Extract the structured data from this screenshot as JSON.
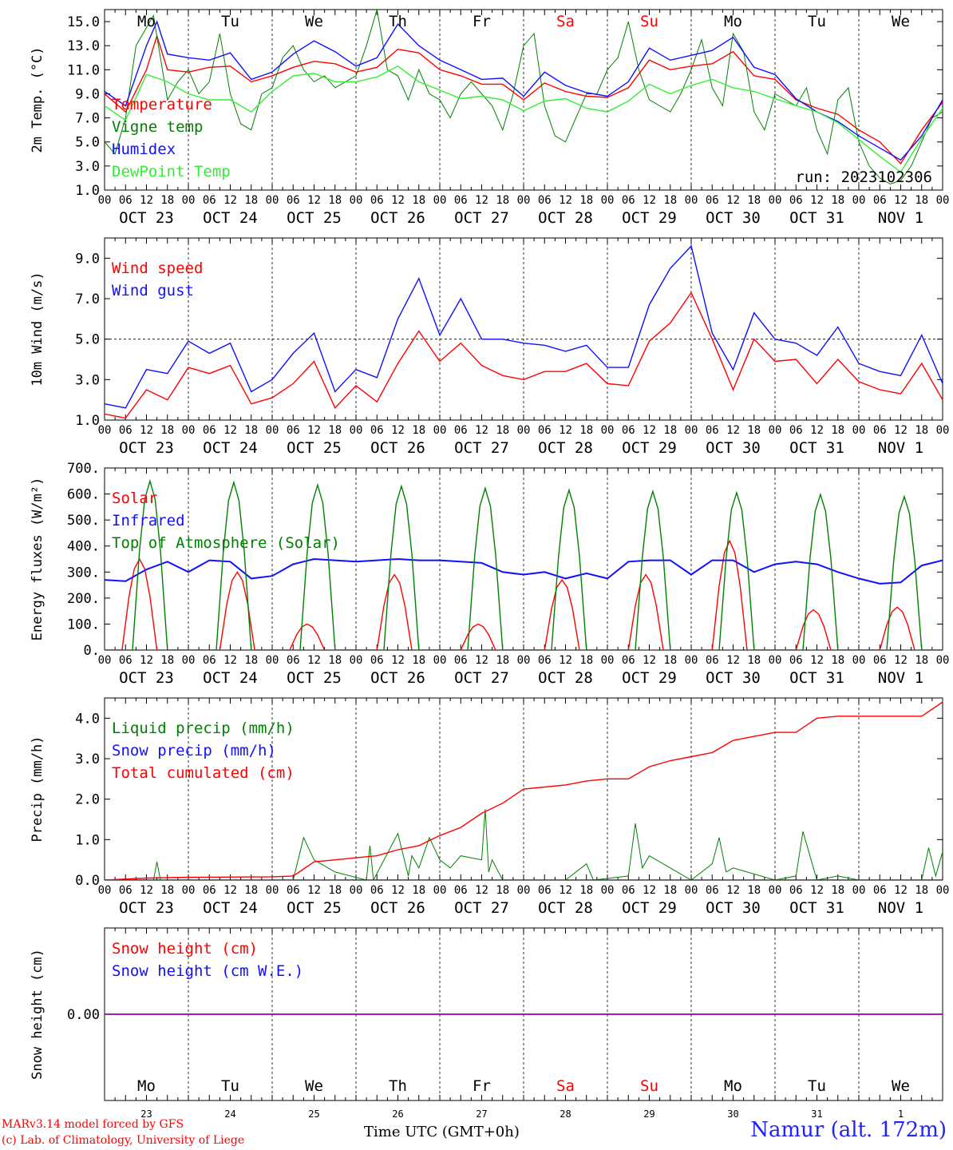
{
  "run_label": "run: 2023102306",
  "day_names": [
    "Mo",
    "Tu",
    "We",
    "Th",
    "Fr",
    "Sa",
    "Su",
    "Mo",
    "Tu",
    "We"
  ],
  "weekend_indices": [
    5,
    6
  ],
  "day_numbers": [
    "23",
    "24",
    "25",
    "26",
    "27",
    "28",
    "29",
    "30",
    "31",
    "1"
  ],
  "date_labels": [
    "OCT 23",
    "OCT 24",
    "OCT 25",
    "OCT 26",
    "OCT 27",
    "OCT 28",
    "OCT 29",
    "OCT 30",
    "OCT 31",
    "NOV  1"
  ],
  "hour_labels": [
    "00",
    "06",
    "12",
    "18"
  ],
  "colors": {
    "red": "#ff0000",
    "green": "#008000",
    "blue": "#1010ff",
    "lightgreen": "#33ee33",
    "purple": "#8000c0"
  },
  "footer": {
    "credit1": "MARv3.14 model forced by GFS",
    "credit2": "(c) Lab. of Climatology, University of Liege",
    "xlabel": "Time UTC (GMT+0h)",
    "station": "Namur (alt. 172m)"
  },
  "chart_data": [
    {
      "type": "line",
      "ylabel": "2m Temp. (°C)",
      "ylim": [
        1,
        16
      ],
      "yticks": [
        1,
        3,
        5,
        7,
        9,
        11,
        13,
        15
      ],
      "ytick_format": 1,
      "x_unit": "hours since 2023-10-23 00 UTC",
      "series": [
        {
          "name": "Temperature",
          "color": "red",
          "x": [
            0,
            6,
            12,
            15,
            18,
            24,
            30,
            36,
            42,
            48,
            54,
            60,
            66,
            72,
            78,
            84,
            90,
            96,
            102,
            108,
            114,
            120,
            126,
            132,
            138,
            144,
            150,
            156,
            162,
            168,
            174,
            180,
            186,
            192,
            198,
            204,
            210,
            216,
            222,
            228,
            234,
            240
          ],
          "values": [
            9,
            7.5,
            11,
            13.8,
            11,
            10.8,
            11.2,
            11.3,
            10,
            10.5,
            11.2,
            11.7,
            11.5,
            10.8,
            11.2,
            12.7,
            12.4,
            11,
            10.5,
            9.8,
            9.8,
            8.5,
            9.9,
            9.2,
            8.8,
            8.7,
            9.5,
            11.8,
            11,
            11.3,
            11.5,
            12.5,
            10.5,
            10.2,
            8.5,
            7.8,
            7.3,
            6,
            5,
            3.2,
            6,
            8.3
          ]
        },
        {
          "name": "Vigne temp",
          "color": "green",
          "x": [
            0,
            3,
            6,
            9,
            12,
            14,
            16,
            18,
            21,
            24,
            27,
            30,
            33,
            36,
            39,
            42,
            45,
            48,
            51,
            54,
            57,
            60,
            63,
            66,
            69,
            72,
            75,
            78,
            81,
            84,
            87,
            90,
            93,
            96,
            99,
            102,
            105,
            108,
            111,
            114,
            117,
            120,
            123,
            126,
            129,
            132,
            135,
            138,
            141,
            144,
            147,
            150,
            153,
            156,
            159,
            162,
            165,
            168,
            171,
            174,
            177,
            180,
            183,
            186,
            189,
            192,
            195,
            198,
            201,
            204,
            207,
            210,
            213,
            216,
            219,
            222,
            225,
            228,
            231,
            234,
            237,
            240
          ],
          "values": [
            5,
            4,
            7,
            13,
            14.5,
            15.5,
            12,
            8.5,
            10,
            11,
            9,
            10,
            14,
            9,
            6.5,
            6,
            9,
            9.5,
            12,
            13,
            11,
            10,
            10.5,
            9.5,
            10,
            10.5,
            13,
            16,
            11,
            10.5,
            8.5,
            11,
            9,
            8.5,
            7,
            9,
            10,
            9,
            8,
            6,
            9,
            13,
            14,
            8,
            5.5,
            5,
            7,
            9,
            9,
            11,
            12,
            15,
            11,
            8.5,
            8,
            7.5,
            9,
            11,
            13.5,
            9.5,
            8,
            14,
            12.5,
            7.5,
            6,
            9,
            8.5,
            8,
            9.5,
            6,
            4,
            8.5,
            9.5,
            5,
            3,
            2,
            1.5,
            1.8,
            3,
            5,
            7,
            7.5
          ]
        },
        {
          "name": "Humidex",
          "color": "blue",
          "x": [
            0,
            6,
            12,
            15,
            18,
            24,
            30,
            36,
            42,
            48,
            54,
            60,
            66,
            72,
            78,
            84,
            90,
            96,
            102,
            108,
            114,
            120,
            126,
            132,
            138,
            144,
            150,
            156,
            162,
            168,
            174,
            180,
            186,
            192,
            198,
            204,
            210,
            216,
            222,
            228,
            234,
            240
          ],
          "values": [
            9.2,
            8,
            13,
            15,
            12.3,
            12,
            11.8,
            12.4,
            10.2,
            10.8,
            12.3,
            13.4,
            12.5,
            11.3,
            12,
            14.8,
            13,
            11.8,
            11,
            10.2,
            10.3,
            8.8,
            10.8,
            9.7,
            9.1,
            8.8,
            10,
            12.8,
            11.8,
            12.2,
            12.6,
            13.7,
            11.2,
            10.6,
            8.6,
            7.5,
            6.7,
            5.5,
            4.5,
            3.5,
            5.5,
            8.5
          ]
        },
        {
          "name": "DewPoint Temp",
          "color": "lightgreen",
          "x": [
            0,
            6,
            12,
            18,
            24,
            30,
            36,
            42,
            48,
            54,
            60,
            66,
            72,
            78,
            84,
            90,
            96,
            102,
            108,
            114,
            120,
            126,
            132,
            138,
            144,
            150,
            156,
            162,
            168,
            174,
            180,
            186,
            192,
            198,
            204,
            210,
            216,
            222,
            228,
            234,
            240
          ],
          "values": [
            8,
            6.8,
            10.6,
            10,
            9,
            8.5,
            8.5,
            7.5,
            9.2,
            10.5,
            10.7,
            10,
            10,
            10.4,
            11.3,
            10,
            9.3,
            8.6,
            8.8,
            8.5,
            7.6,
            8.4,
            8.6,
            7.8,
            7.5,
            8.4,
            9.8,
            9,
            9.7,
            10.2,
            9.5,
            9.2,
            8.6,
            8,
            7.5,
            6.6,
            5.2,
            3.8,
            2.5,
            5.3,
            7.8
          ]
        }
      ]
    },
    {
      "type": "line",
      "ylabel": "10m Wind (m/s)",
      "ylim": [
        1,
        10
      ],
      "yticks": [
        1,
        3,
        5,
        7,
        9
      ],
      "ytick_format": 1,
      "reference_line": 5,
      "series": [
        {
          "name": "Wind speed",
          "color": "red",
          "x": [
            0,
            6,
            12,
            18,
            24,
            30,
            36,
            42,
            48,
            54,
            60,
            66,
            72,
            78,
            84,
            90,
            96,
            102,
            108,
            114,
            120,
            126,
            132,
            138,
            144,
            150,
            156,
            162,
            168,
            174,
            180,
            186,
            192,
            198,
            204,
            210,
            216,
            222,
            228,
            234,
            240
          ],
          "values": [
            1.3,
            1.1,
            2.5,
            2,
            3.6,
            3.3,
            3.7,
            1.8,
            2.1,
            2.8,
            3.9,
            1.6,
            2.7,
            1.9,
            3.8,
            5.4,
            3.9,
            4.8,
            3.7,
            3.2,
            3,
            3.4,
            3.4,
            3.8,
            2.8,
            2.7,
            4.9,
            5.8,
            7.3,
            5,
            2.5,
            5,
            3.9,
            4,
            2.8,
            4,
            2.9,
            2.5,
            2.3,
            3.8,
            2
          ]
        },
        {
          "name": "Wind gust",
          "color": "blue",
          "x": [
            0,
            6,
            12,
            18,
            24,
            30,
            36,
            42,
            48,
            54,
            60,
            66,
            72,
            78,
            84,
            90,
            96,
            102,
            108,
            114,
            120,
            126,
            132,
            138,
            144,
            150,
            156,
            162,
            168,
            174,
            180,
            186,
            192,
            198,
            204,
            210,
            216,
            222,
            228,
            234,
            240
          ],
          "values": [
            1.8,
            1.6,
            3.5,
            3.3,
            4.9,
            4.3,
            4.8,
            2.4,
            3,
            4.3,
            5.3,
            2.4,
            3.5,
            3.1,
            6,
            8,
            5.2,
            7,
            5,
            5,
            4.8,
            4.7,
            4.4,
            4.7,
            3.6,
            3.6,
            6.7,
            8.5,
            9.6,
            5.3,
            3.5,
            6.3,
            5,
            4.8,
            4.2,
            5.6,
            3.8,
            3.4,
            3.2,
            5.2,
            2.8
          ]
        }
      ]
    },
    {
      "type": "line",
      "ylabel": "Energy fluxes (W/m²)",
      "ylim": [
        0,
        700
      ],
      "yticks": [
        0,
        100,
        200,
        300,
        400,
        500,
        600,
        700
      ],
      "ytick_format": 0,
      "series": [
        {
          "name": "Solar",
          "color": "red",
          "peaks": [
            [
              10,
              350
            ],
            [
              38,
              300
            ],
            [
              58,
              100
            ],
            [
              83,
              290
            ],
            [
              107,
              100
            ],
            [
              131,
              270
            ],
            [
              155,
              290
            ],
            [
              179,
              420
            ],
            [
              203,
              155
            ],
            [
              227,
              165
            ]
          ]
        },
        {
          "name": "Infrared",
          "color": "blue",
          "x": [
            0,
            6,
            12,
            18,
            24,
            30,
            36,
            42,
            48,
            54,
            60,
            66,
            72,
            78,
            84,
            90,
            96,
            102,
            108,
            114,
            120,
            126,
            132,
            138,
            144,
            150,
            156,
            162,
            168,
            174,
            180,
            186,
            192,
            198,
            204,
            210,
            216,
            222,
            228,
            234,
            240
          ],
          "values": [
            270,
            265,
            310,
            340,
            300,
            345,
            340,
            275,
            285,
            330,
            350,
            345,
            340,
            345,
            350,
            345,
            345,
            340,
            335,
            300,
            290,
            300,
            275,
            295,
            275,
            340,
            345,
            345,
            290,
            345,
            345,
            300,
            330,
            340,
            330,
            300,
            275,
            255,
            260,
            325,
            345
          ]
        },
        {
          "name": "Top of Atmosphere (Solar)",
          "color": "green",
          "peaks": [
            [
              13,
              650
            ],
            [
              37,
              645
            ],
            [
              61,
              635
            ],
            [
              85,
              630
            ],
            [
              109,
              622
            ],
            [
              133,
              615
            ],
            [
              157,
              610
            ],
            [
              181,
              605
            ],
            [
              205,
              598
            ],
            [
              229,
              590
            ]
          ]
        }
      ]
    },
    {
      "type": "line",
      "ylabel": "Precip (mm/h)",
      "ylim": [
        0,
        4.5
      ],
      "yticks": [
        0,
        1,
        2,
        3,
        4
      ],
      "ytick_format": 1,
      "series": [
        {
          "name": "Liquid precip (mm/h)",
          "color": "green",
          "x": [
            0,
            14,
            15,
            16,
            24,
            54,
            57,
            60,
            66,
            75,
            76,
            77,
            84,
            87,
            88,
            90,
            93,
            96,
            99,
            102,
            108,
            109,
            110,
            111,
            114,
            132,
            138,
            140,
            150,
            152,
            154,
            156,
            168,
            174,
            176,
            178,
            180,
            192,
            198,
            200,
            204,
            210,
            216,
            234,
            236,
            238,
            240
          ],
          "values": [
            0,
            0,
            0.45,
            0,
            0,
            0,
            1.05,
            0.5,
            0.2,
            0,
            0.85,
            0,
            1.15,
            0.1,
            0.6,
            0.3,
            1.05,
            0.5,
            0.3,
            0.6,
            0.5,
            1.75,
            0.2,
            0.5,
            0,
            0,
            0.4,
            0,
            0.1,
            1.4,
            0.3,
            0.6,
            0,
            0.4,
            1.05,
            0.2,
            0.3,
            0,
            0.1,
            1.2,
            0,
            0.1,
            0,
            0,
            0.8,
            0.1,
            0.7
          ]
        },
        {
          "name": "Snow precip (mm/h)",
          "color": "blue",
          "x": [
            0,
            240
          ],
          "values": [
            0,
            0
          ]
        },
        {
          "name": "Total cumulated (cm)",
          "color": "red",
          "x": [
            0,
            12,
            24,
            48,
            54,
            60,
            66,
            72,
            78,
            84,
            90,
            96,
            102,
            108,
            114,
            120,
            126,
            132,
            138,
            144,
            150,
            156,
            162,
            168,
            174,
            180,
            186,
            192,
            198,
            204,
            210,
            216,
            222,
            228,
            234,
            240
          ],
          "values": [
            0,
            0.05,
            0.07,
            0.08,
            0.1,
            0.45,
            0.5,
            0.55,
            0.6,
            0.75,
            0.85,
            1.1,
            1.3,
            1.65,
            1.9,
            2.25,
            2.3,
            2.35,
            2.45,
            2.5,
            2.5,
            2.8,
            2.95,
            3.05,
            3.15,
            3.45,
            3.55,
            3.65,
            3.65,
            4,
            4.05,
            4.05,
            4.05,
            4.05,
            4.05,
            4.4
          ]
        }
      ]
    },
    {
      "type": "line",
      "ylabel": "Snow height (cm)",
      "ylim": [
        -1,
        1
      ],
      "yticks": [
        0
      ],
      "ytick_format": 2,
      "series": [
        {
          "name": "Snow height (cm)",
          "color": "red",
          "x": [
            0,
            240
          ],
          "values": [
            0,
            0
          ]
        },
        {
          "name": "Snow height (cm W.E.)",
          "color": "blue",
          "x": [
            0,
            240
          ],
          "values": [
            0,
            0
          ]
        }
      ]
    }
  ]
}
